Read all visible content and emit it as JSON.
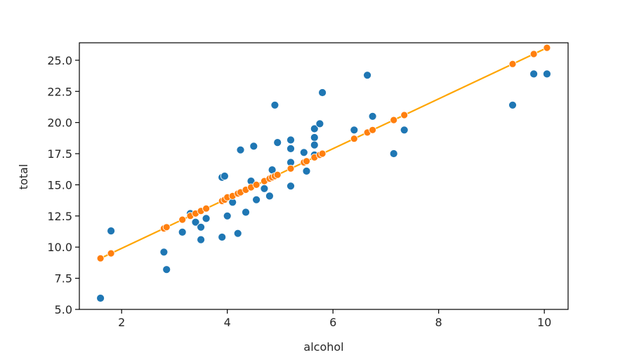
{
  "chart_data": {
    "type": "scatter",
    "title": "",
    "xlabel": "alcohol",
    "ylabel": "total",
    "xlim": [
      1.2,
      10.45
    ],
    "ylim": [
      5.0,
      26.4
    ],
    "xticks": [
      "2",
      "4",
      "6",
      "8",
      "10"
    ],
    "yticks": [
      "5.0",
      "7.5",
      "10.0",
      "12.5",
      "15.0",
      "17.5",
      "20.0",
      "22.5",
      "25.0"
    ],
    "grid": false,
    "colors": {
      "observed": "#1f77b4",
      "fitted": "#ff7f0e",
      "line": "#ffa500"
    },
    "series": [
      {
        "kind": "scatter",
        "x": [
          1.6,
          1.8,
          2.8,
          2.85,
          3.15,
          3.3,
          3.4,
          3.5,
          3.5,
          3.6,
          3.9,
          3.9,
          3.95,
          4.0,
          4.1,
          4.2,
          4.25,
          4.35,
          4.45,
          4.5,
          4.55,
          4.7,
          4.8,
          4.85,
          4.9,
          4.95,
          5.2,
          5.2,
          5.2,
          5.2,
          5.45,
          5.5,
          5.65,
          5.65,
          5.65,
          5.65,
          5.75,
          5.8,
          6.4,
          6.65,
          6.75,
          7.15,
          7.35,
          9.4,
          9.8,
          10.05
        ],
        "y": [
          5.9,
          11.3,
          9.6,
          8.2,
          11.2,
          12.7,
          12.0,
          11.6,
          10.6,
          12.3,
          15.6,
          10.8,
          15.7,
          12.5,
          13.6,
          11.1,
          17.8,
          12.8,
          15.3,
          18.1,
          13.8,
          14.7,
          14.1,
          16.2,
          21.4,
          18.4,
          18.6,
          17.9,
          16.8,
          14.9,
          17.6,
          16.1,
          19.5,
          18.8,
          18.2,
          17.4,
          19.9,
          22.4,
          19.4,
          23.8,
          20.5,
          17.5,
          19.4,
          21.4,
          23.9,
          23.9
        ]
      },
      {
        "kind": "line",
        "x": [
          1.6,
          1.8,
          2.8,
          2.85,
          3.15,
          3.3,
          3.4,
          3.5,
          3.6,
          3.9,
          3.95,
          4.0,
          4.1,
          4.2,
          4.25,
          4.35,
          4.45,
          4.55,
          4.7,
          4.8,
          4.85,
          4.9,
          4.95,
          5.2,
          5.45,
          5.5,
          5.65,
          5.75,
          5.8,
          6.4,
          6.65,
          6.75,
          7.15,
          7.35,
          9.4,
          9.8,
          10.05
        ],
        "y": [
          9.1,
          9.5,
          11.5,
          11.6,
          12.2,
          12.5,
          12.7,
          12.9,
          13.1,
          13.7,
          13.8,
          14.0,
          14.1,
          14.3,
          14.4,
          14.6,
          14.8,
          15.0,
          15.3,
          15.5,
          15.6,
          15.7,
          15.8,
          16.3,
          16.8,
          16.9,
          17.2,
          17.4,
          17.5,
          18.7,
          19.2,
          19.4,
          20.2,
          20.6,
          24.7,
          25.5,
          26.0
        ]
      }
    ]
  }
}
